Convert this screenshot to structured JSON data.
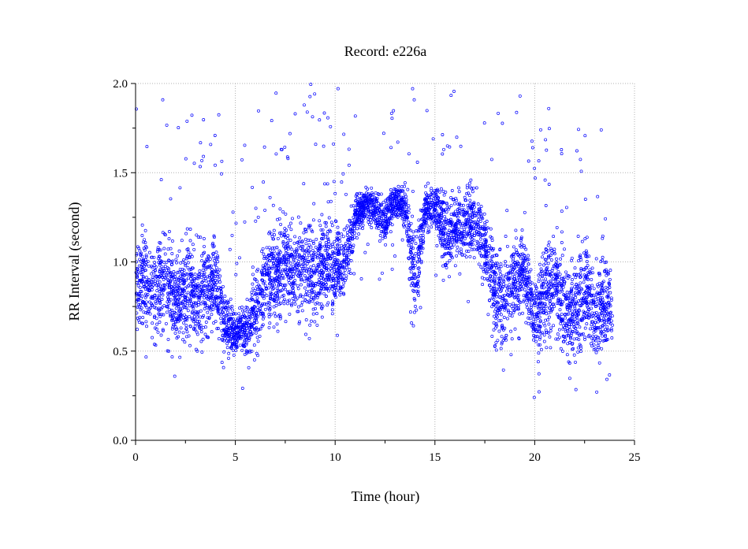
{
  "chart_data": {
    "type": "scatter",
    "title": "Record:  e226a",
    "xlabel": "Time (hour)",
    "ylabel": "RR Interval (second)",
    "xlim": [
      0,
      25
    ],
    "ylim": [
      0.0,
      2.0
    ],
    "x_ticks": [
      0,
      5,
      10,
      15,
      20,
      25
    ],
    "x_tick_labels": [
      "0",
      "5",
      "10",
      "15",
      "20",
      "25"
    ],
    "x_minor_ticks": [
      2.5,
      7.5,
      12.5,
      17.5,
      22.5
    ],
    "y_ticks": [
      0.0,
      0.5,
      1.0,
      1.5,
      2.0
    ],
    "y_tick_labels": [
      "0.0",
      "0.5",
      "1.0",
      "1.5",
      "2.0"
    ],
    "y_minor_ticks": [
      0.25,
      0.75,
      1.25,
      1.75
    ],
    "grid": true,
    "marker": "open-circle",
    "color": "#0000ff",
    "series": [
      {
        "x": [
          0.0,
          0.5,
          1.0,
          1.5,
          2.0,
          2.5,
          3.0,
          3.5,
          4.0,
          4.5,
          5.0,
          5.5,
          6.0,
          6.5,
          7.0,
          7.5,
          8.0,
          8.5,
          9.0,
          9.5,
          10.0,
          10.5,
          11.0,
          11.5,
          12.0,
          12.5,
          13.0,
          13.5,
          14.0,
          14.5,
          15.0,
          15.5,
          16.0,
          16.5,
          17.0,
          17.5,
          18.0,
          18.5,
          19.0,
          19.5,
          20.0,
          20.5,
          21.0,
          21.5,
          22.0,
          22.5,
          23.0,
          23.5,
          23.9
        ],
        "y": [
          0.88,
          0.9,
          0.85,
          0.88,
          0.8,
          0.85,
          0.82,
          0.85,
          0.88,
          0.65,
          0.6,
          0.62,
          0.75,
          0.9,
          0.95,
          0.98,
          0.95,
          1.0,
          0.92,
          1.0,
          0.95,
          1.0,
          1.25,
          1.33,
          1.3,
          1.22,
          1.35,
          1.32,
          0.9,
          1.3,
          1.3,
          1.15,
          1.2,
          1.2,
          1.25,
          1.1,
          0.8,
          0.75,
          0.9,
          0.95,
          0.65,
          0.8,
          0.9,
          0.75,
          0.7,
          0.85,
          0.7,
          0.75,
          0.75
        ],
        "spread": [
          0.17,
          0.18,
          0.2,
          0.2,
          0.18,
          0.2,
          0.18,
          0.2,
          0.2,
          0.12,
          0.08,
          0.1,
          0.18,
          0.18,
          0.2,
          0.2,
          0.18,
          0.18,
          0.2,
          0.18,
          0.18,
          0.12,
          0.1,
          0.06,
          0.08,
          0.1,
          0.06,
          0.08,
          0.2,
          0.08,
          0.1,
          0.18,
          0.12,
          0.15,
          0.15,
          0.18,
          0.2,
          0.2,
          0.18,
          0.15,
          0.15,
          0.2,
          0.2,
          0.2,
          0.2,
          0.2,
          0.18,
          0.18,
          0.15
        ]
      }
    ]
  }
}
